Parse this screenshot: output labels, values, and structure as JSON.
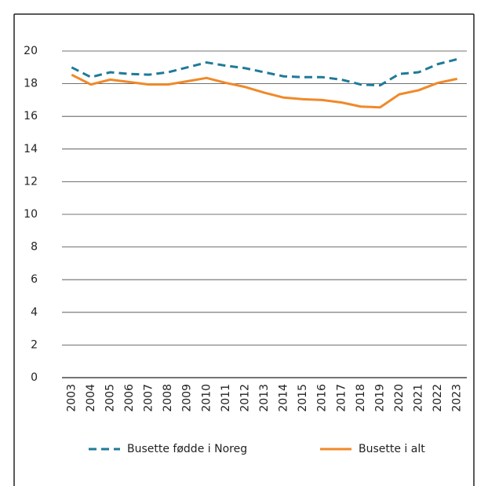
{
  "chart_data": {
    "type": "line",
    "categories": [
      "2003",
      "2004",
      "2005",
      "2006",
      "2007",
      "2008",
      "2009",
      "2010",
      "2011",
      "2012",
      "2013",
      "2014",
      "2015",
      "2016",
      "2017",
      "2018",
      "2019",
      "2020",
      "2021",
      "2022",
      "2023"
    ],
    "series": [
      {
        "name": "Busette fødde i Noreg",
        "color": "#1f7a99",
        "dashed": true,
        "values": [
          19.0,
          18.4,
          18.7,
          18.6,
          18.55,
          18.7,
          19.0,
          19.3,
          19.1,
          18.95,
          18.7,
          18.45,
          18.4,
          18.4,
          18.25,
          17.95,
          17.9,
          18.6,
          18.7,
          19.2,
          19.5
        ]
      },
      {
        "name": "Busette i alt",
        "color": "#f0892a",
        "dashed": false,
        "values": [
          18.55,
          17.95,
          18.25,
          18.1,
          17.95,
          17.95,
          18.15,
          18.35,
          18.05,
          17.8,
          17.45,
          17.15,
          17.05,
          17.0,
          16.85,
          16.6,
          16.55,
          17.35,
          17.6,
          18.05,
          18.3
        ]
      }
    ],
    "ylim": [
      0,
      20
    ],
    "yticks": [
      0,
      2,
      4,
      6,
      8,
      10,
      12,
      14,
      16,
      18,
      20
    ],
    "grid": true
  }
}
